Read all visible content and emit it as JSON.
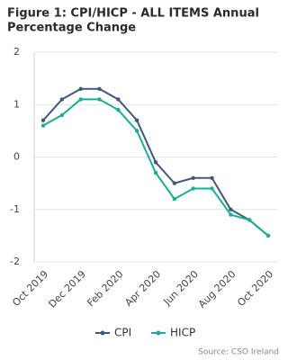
{
  "chart_data": {
    "type": "line",
    "title": "Figure 1: CPI/HICP - ALL ITEMS Annual",
    "subtitle": "Percentage Change",
    "categories": [
      "Oct 2019",
      null,
      "Dec 2019",
      null,
      "Feb 2020",
      null,
      "Apr 2020",
      null,
      "Jun 2020",
      null,
      "Aug 2020",
      null,
      "Oct 2020"
    ],
    "series": [
      {
        "name": "CPI",
        "color": "#3d5a80",
        "values": [
          0.7,
          1.1,
          1.3,
          1.3,
          1.1,
          0.7,
          -0.1,
          -0.5,
          -0.4,
          -0.4,
          -1.0,
          -1.2,
          -1.5
        ]
      },
      {
        "name": "HICP",
        "color": "#17b092",
        "values": [
          0.6,
          0.8,
          1.1,
          1.1,
          0.9,
          0.5,
          -0.3,
          -0.8,
          -0.6,
          -0.6,
          -1.1,
          -1.2,
          -1.5
        ]
      }
    ],
    "ylim": [
      -2,
      2
    ],
    "yticks": [
      -2,
      -1,
      0,
      1,
      2
    ],
    "grid": true,
    "source": "Source: CSO Ireland"
  }
}
